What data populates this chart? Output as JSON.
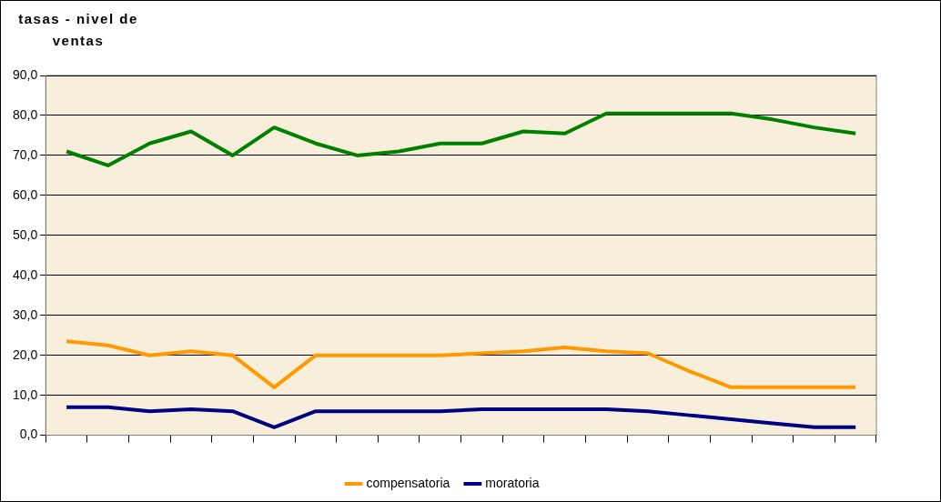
{
  "chart_data": {
    "type": "line",
    "title": "tasas - nivel de ventas",
    "categories": [
      null,
      null,
      null,
      null,
      null,
      null,
      null,
      null,
      null,
      null,
      null,
      null,
      null,
      null,
      null,
      null,
      null,
      null,
      null,
      null
    ],
    "ylim": [
      0,
      90
    ],
    "yticks": [
      {
        "value": 0,
        "label": "0,0"
      },
      {
        "value": 10,
        "label": "10,0"
      },
      {
        "value": 20,
        "label": "20,0"
      },
      {
        "value": 30,
        "label": "30,0"
      },
      {
        "value": 40,
        "label": "40,0"
      },
      {
        "value": 50,
        "label": "50,0"
      },
      {
        "value": 60,
        "label": "60,0"
      },
      {
        "value": 70,
        "label": "70,0"
      },
      {
        "value": 80,
        "label": "80,0"
      },
      {
        "value": 90,
        "label": "90,0"
      }
    ],
    "grid": "y",
    "legend": "bottom",
    "marker": "none",
    "line_style": "solid",
    "series": [
      {
        "name": "compensatoria",
        "color": "#ff9900",
        "values": [
          23.5,
          22.5,
          20,
          21,
          20,
          12,
          20,
          20,
          20,
          20,
          20.5,
          21,
          22,
          21,
          20.5,
          16,
          12,
          12,
          12,
          12
        ]
      },
      {
        "name": "moratoria",
        "color": "#000080",
        "values": [
          7,
          7,
          6,
          6.5,
          6,
          2,
          6,
          6,
          6,
          6,
          6.5,
          6.5,
          6.5,
          6.5,
          6,
          5,
          4,
          3,
          2,
          2
        ]
      },
      {
        "color": "#008000",
        "values": [
          71,
          67.5,
          73,
          76,
          70,
          77,
          73,
          70,
          71,
          73,
          73,
          76,
          75.5,
          80.5,
          80.5,
          80.5,
          80.5,
          79,
          77,
          75.5
        ]
      }
    ]
  }
}
